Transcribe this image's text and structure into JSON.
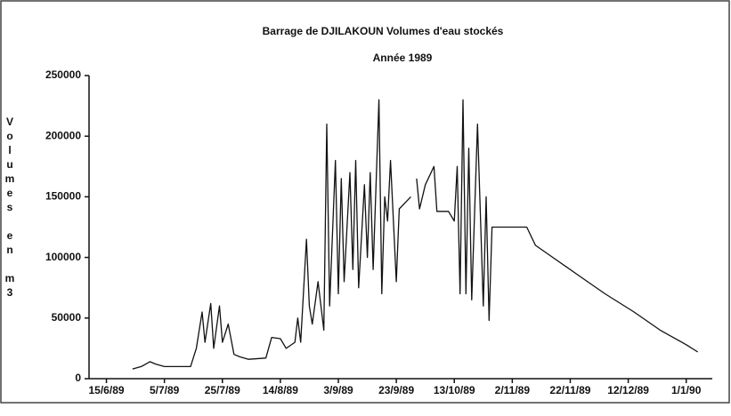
{
  "chart_data": {
    "type": "line",
    "title": "Barrage de DJILAKOUN   Volumes d'eau stockés",
    "subtitle": "Année 1989",
    "y_label": "Volumes en m3",
    "color": "#111111",
    "x": [
      "1989-06-24",
      "1989-06-27",
      "1989-06-30",
      "1989-07-02",
      "1989-07-05",
      "1989-07-14",
      "1989-07-16",
      "1989-07-18",
      "1989-07-19",
      "1989-07-21",
      "1989-07-22",
      "1989-07-24",
      "1989-07-25",
      "1989-07-27",
      "1989-07-29",
      "1989-07-31",
      "1989-08-03",
      "1989-08-09",
      "1989-08-11",
      "1989-08-14",
      "1989-08-16",
      "1989-08-19",
      "1989-08-20",
      "1989-08-21",
      "1989-08-23",
      "1989-08-24",
      "1989-08-25",
      "1989-08-27",
      "1989-08-29",
      "1989-08-30",
      "1989-08-31",
      "1989-09-02",
      "1989-09-03",
      "1989-09-04",
      "1989-09-05",
      "1989-09-07",
      "1989-09-08",
      "1989-09-09",
      "1989-09-10",
      "1989-09-12",
      "1989-09-13",
      "1989-09-14",
      "1989-09-15",
      "1989-09-17",
      "1989-09-18",
      "1989-09-19",
      "1989-09-20",
      "1989-09-21",
      "1989-09-23",
      "1989-09-24",
      "1989-09-26",
      "1989-09-28",
      "1989-09-29",
      "1989-09-30",
      "1989-10-01",
      "1989-10-03",
      "1989-10-06",
      "1989-10-07",
      "1989-10-11",
      "1989-10-13",
      "1989-10-14",
      "1989-10-15",
      "1989-10-16",
      "1989-10-17",
      "1989-10-18",
      "1989-10-19",
      "1989-10-21",
      "1989-10-23",
      "1989-10-24",
      "1989-10-25",
      "1989-10-26",
      "1989-11-07",
      "1989-11-10",
      "1989-11-16",
      "1989-11-25",
      "1989-12-04",
      "1989-12-14",
      "1989-12-23",
      "1990-01-01",
      "1990-01-05"
    ],
    "values": [
      8000,
      10000,
      14000,
      12000,
      10000,
      10000,
      25000,
      55000,
      30000,
      62000,
      25000,
      60000,
      30000,
      45000,
      20000,
      18000,
      16000,
      17000,
      34000,
      33000,
      25000,
      30000,
      50000,
      30000,
      115000,
      60000,
      45000,
      80000,
      40000,
      210000,
      60000,
      180000,
      70000,
      165000,
      80000,
      170000,
      90000,
      180000,
      75000,
      160000,
      100000,
      170000,
      90000,
      230000,
      70000,
      150000,
      130000,
      180000,
      80000,
      140000,
      145000,
      150000,
      null,
      165000,
      140000,
      160000,
      175000,
      138000,
      138000,
      130000,
      175000,
      70000,
      230000,
      70000,
      190000,
      65000,
      210000,
      60000,
      150000,
      48000,
      125000,
      125000,
      110000,
      100000,
      85000,
      70000,
      55000,
      40000,
      28000,
      22000
    ],
    "xlim": [
      "1989-06-09",
      "1990-01-10"
    ],
    "xticks": [
      {
        "value": "1989-06-15",
        "label": "15/6/89"
      },
      {
        "value": "1989-07-05",
        "label": "5/7/89"
      },
      {
        "value": "1989-07-25",
        "label": "25/7/89"
      },
      {
        "value": "1989-08-14",
        "label": "14/8/89"
      },
      {
        "value": "1989-09-03",
        "label": "3/9/89"
      },
      {
        "value": "1989-09-23",
        "label": "23/9/89"
      },
      {
        "value": "1989-10-13",
        "label": "13/10/89"
      },
      {
        "value": "1989-11-02",
        "label": "2/11/89"
      },
      {
        "value": "1989-11-22",
        "label": "22/11/89"
      },
      {
        "value": "1989-12-12",
        "label": "12/12/89"
      },
      {
        "value": "1990-01-01",
        "label": "1/1/90"
      }
    ],
    "ylim": [
      0,
      250000
    ],
    "yticks": [
      0,
      50000,
      100000,
      150000,
      200000,
      250000
    ]
  }
}
